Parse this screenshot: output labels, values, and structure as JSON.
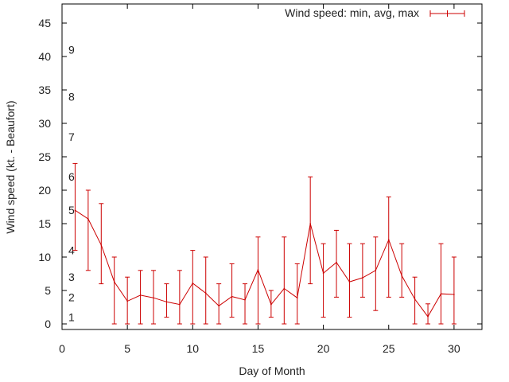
{
  "chart_data": {
    "type": "line",
    "title": "",
    "xlabel": "Day of Month",
    "ylabel": "Wind speed (kt. - Beaufort)",
    "xlim": [
      0,
      32
    ],
    "ylim": [
      -1,
      48
    ],
    "xticks": [
      0,
      5,
      10,
      15,
      20,
      25,
      30
    ],
    "yticks": [
      0,
      5,
      10,
      15,
      20,
      25,
      30,
      35,
      40,
      45
    ],
    "grid": false,
    "legend_position": "top-right",
    "beaufort_labels": [
      {
        "text": "1",
        "y": 1
      },
      {
        "text": "2",
        "y": 4
      },
      {
        "text": "3",
        "y": 7
      },
      {
        "text": "4",
        "y": 11
      },
      {
        "text": "5",
        "y": 17
      },
      {
        "text": "6",
        "y": 22
      },
      {
        "text": "7",
        "y": 28
      },
      {
        "text": "8",
        "y": 34
      },
      {
        "text": "9",
        "y": 41
      }
    ],
    "series": [
      {
        "name": "Wind speed: min, avg, max",
        "color": "#cc0000",
        "x": [
          1,
          2,
          3,
          4,
          5,
          6,
          7,
          8,
          9,
          10,
          11,
          12,
          13,
          14,
          15,
          16,
          17,
          18,
          19,
          20,
          21,
          22,
          23,
          24,
          25,
          26,
          27,
          28,
          29,
          30
        ],
        "avg": [
          17,
          15.7,
          11.8,
          6.3,
          3.4,
          4.3,
          3.9,
          3.3,
          2.9,
          6.1,
          4.6,
          2.7,
          4.1,
          3.6,
          8.1,
          2.9,
          5.3,
          3.9,
          15,
          7.6,
          9.2,
          6.3,
          6.9,
          8,
          12.6,
          7.2,
          3.7,
          1.1,
          4.5,
          4.4
        ],
        "min": [
          11,
          8,
          6,
          0,
          0,
          0,
          0,
          1,
          0,
          0,
          0,
          0,
          1,
          0,
          0,
          1,
          0,
          0,
          6,
          1,
          4,
          1,
          4,
          2,
          4,
          4,
          0,
          0,
          0,
          0
        ],
        "max": [
          24,
          20,
          18,
          10,
          7,
          8,
          8,
          6,
          8,
          11,
          10,
          6,
          9,
          6,
          13,
          5,
          13,
          9,
          22,
          12,
          14,
          12,
          12,
          13,
          19,
          12,
          7,
          3,
          12,
          10
        ]
      }
    ]
  }
}
